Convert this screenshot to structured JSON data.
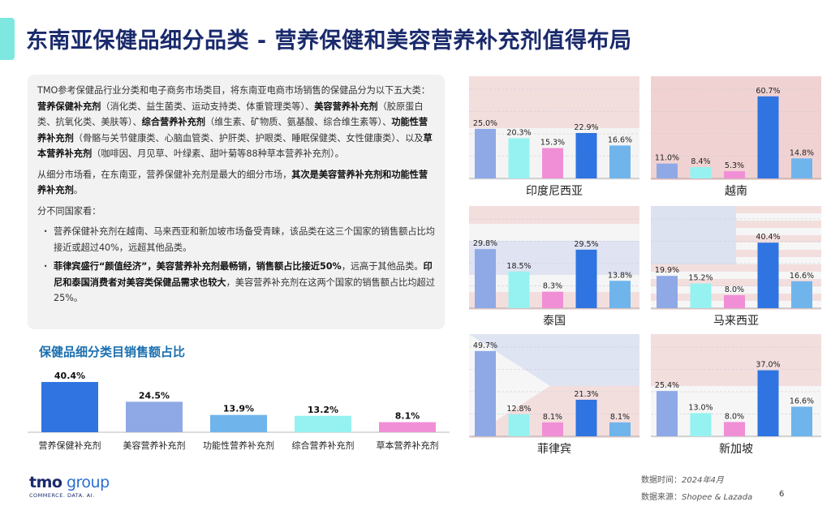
{
  "header": {
    "title": "东南亚保健品细分品类 - 营养保健和美容营养补充剂值得布局"
  },
  "intro": {
    "p1": [
      {
        "t": "TMO参考保健品行业分类和电子商务市场类目，将东南亚电商市场销售的保健品分为以下五大类：",
        "b": false
      },
      {
        "t": "营养保健补充剂",
        "b": true
      },
      {
        "t": "（消化类、益生菌类、运动支持类、体重管理类等）、",
        "b": false
      },
      {
        "t": "美容营养补充剂",
        "b": true
      },
      {
        "t": "（胶原蛋白类、抗氧化类、美肤等）、",
        "b": false
      },
      {
        "t": "综合营养补充剂",
        "b": true
      },
      {
        "t": "（维生素、矿物质、氨基酸、综合维生素等）、",
        "b": false
      },
      {
        "t": "功能性营养补充剂",
        "b": true
      },
      {
        "t": "（骨骼与关节健康类、心脑血管类、护肝类、护眼类、睡眠保健类、女性健康类）、以及",
        "b": false
      },
      {
        "t": "草本营养补充剂",
        "b": true
      },
      {
        "t": "（咖啡因、月见草、叶绿素、甜叶菊等88种草本营养补充剂）。",
        "b": false
      }
    ],
    "p2": [
      {
        "t": "从细分市场看，在东南亚，营养保健补充剂是最大的细分市场，",
        "b": false
      },
      {
        "t": "其次是美容营养补充剂和功能性营养补充剂",
        "b": true
      },
      {
        "t": "。",
        "b": false
      }
    ],
    "p3": "分不同国家看：",
    "bullets": [
      [
        {
          "t": "营养保健补充剂在越南、马来西亚和新加坡市场备受青睐，该品类在这三个国家的销售额占比均接近或超过40%，远超其他品类。",
          "b": false
        }
      ],
      [
        {
          "t": "菲律宾盛行“颜值经济”，美容营养补充剂最畅销，销售额占比接近50%",
          "b": true
        },
        {
          "t": "，远高于其他品类。",
          "b": false
        },
        {
          "t": "印尼和泰国消费者对美容类保健品需求也较大",
          "b": true
        },
        {
          "t": "，美容营养补充剂在这两个国家的销售额占比均超过25%。",
          "b": false
        }
      ]
    ]
  },
  "colors": {
    "nutrition": "#2f74e0",
    "beauty": "#8fa9e6",
    "functional": "#6fb5ec",
    "comprehensive": "#96f2f0",
    "herbal": "#f08fd6"
  },
  "chart_data": [
    {
      "type": "bar",
      "title": "保健品细分类目销售额占比",
      "categories": [
        "营养保健补充剂",
        "美容营养补充剂",
        "功能性营养补充剂",
        "综合营养补充剂",
        "草本营养补充剂"
      ],
      "values": [
        40.4,
        24.5,
        13.9,
        13.2,
        8.1
      ],
      "labels": [
        "40.4%",
        "24.5%",
        "13.9%",
        "13.2%",
        "8.1%"
      ],
      "colorKeys": [
        "nutrition",
        "beauty",
        "functional",
        "comprehensive",
        "herbal"
      ],
      "ylim": [
        0,
        45
      ]
    },
    {
      "type": "bar",
      "country": "印度尼西亚",
      "values": [
        25.0,
        20.3,
        15.3,
        22.9,
        16.6
      ],
      "labels": [
        "25.0%",
        "20.3%",
        "15.3%",
        "22.9%",
        "16.6%"
      ],
      "colorKeys": [
        "beauty",
        "comprehensive",
        "herbal",
        "nutrition",
        "functional"
      ],
      "ylim": [
        0,
        45
      ]
    },
    {
      "type": "bar",
      "country": "越南",
      "values": [
        11.0,
        8.4,
        5.3,
        60.7,
        14.8
      ],
      "labels": [
        "11.0%",
        "8.4%",
        "5.3%",
        "60.7%",
        "14.8%"
      ],
      "colorKeys": [
        "beauty",
        "comprehensive",
        "herbal",
        "nutrition",
        "functional"
      ],
      "ylim": [
        0,
        66
      ]
    },
    {
      "type": "bar",
      "country": "泰国",
      "values": [
        29.8,
        18.5,
        8.3,
        29.5,
        13.8
      ],
      "labels": [
        "29.8%",
        "18.5%",
        "8.3%",
        "29.5%",
        "13.8%"
      ],
      "colorKeys": [
        "beauty",
        "comprehensive",
        "herbal",
        "nutrition",
        "functional"
      ],
      "ylim": [
        0,
        45
      ]
    },
    {
      "type": "bar",
      "country": "马来西亚",
      "values": [
        19.9,
        15.2,
        8.0,
        40.4,
        16.6
      ],
      "labels": [
        "19.9%",
        "15.2%",
        "8.0%",
        "40.4%",
        "16.6%"
      ],
      "colorKeys": [
        "beauty",
        "comprehensive",
        "herbal",
        "nutrition",
        "functional"
      ],
      "ylim": [
        0,
        55
      ]
    },
    {
      "type": "bar",
      "country": "菲律宾",
      "values": [
        49.7,
        12.8,
        8.1,
        21.3,
        8.1
      ],
      "labels": [
        "49.7%",
        "12.8%",
        "8.1%",
        "21.3%",
        "8.1%"
      ],
      "colorKeys": [
        "beauty",
        "comprehensive",
        "herbal",
        "nutrition",
        "functional"
      ],
      "ylim": [
        0,
        52
      ]
    },
    {
      "type": "bar",
      "country": "新加坡",
      "values": [
        25.4,
        13.0,
        8.0,
        37.0,
        16.6
      ],
      "labels": [
        "25.4%",
        "13.0%",
        "8.0%",
        "37.0%",
        "16.6%"
      ],
      "colorKeys": [
        "beauty",
        "comprehensive",
        "herbal",
        "nutrition",
        "functional"
      ],
      "ylim": [
        0,
        50
      ]
    }
  ],
  "footer": {
    "logo_main": "tmo",
    "logo_group": " group",
    "logo_tagline": "COMMERCE. DATA. AI.",
    "date_label": "数据时间：",
    "date_value": "2024年4月",
    "source_label": "数据来源：",
    "source_value": "Shopee & Lazada",
    "page_number": "6"
  }
}
